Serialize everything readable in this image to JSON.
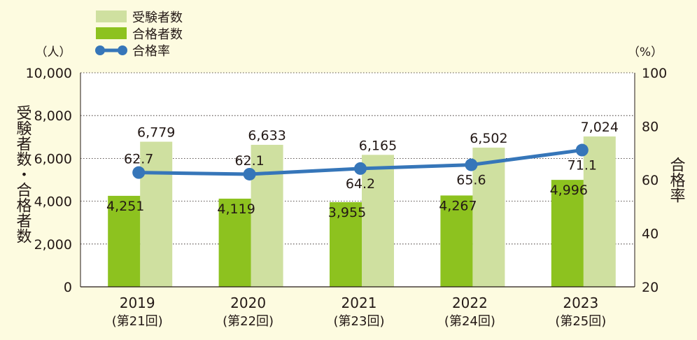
{
  "chart_data": {
    "type": "bar+line",
    "categories": [
      "2019\n(第21回)",
      "2020\n(第22回)",
      "2021\n(第23回)",
      "2022\n(第24回)",
      "2023\n(第25回)"
    ],
    "category_years": [
      "2019",
      "2020",
      "2021",
      "2022",
      "2023"
    ],
    "category_rounds": [
      "(第21回)",
      "(第22回)",
      "(第23回)",
      "(第24回)",
      "(第25回)"
    ],
    "series": [
      {
        "name": "受験者数",
        "type": "bar",
        "axis": "left",
        "color": "#cfe0a0",
        "values": [
          6779,
          6633,
          6165,
          6502,
          7024
        ],
        "labels": [
          "6,779",
          "6,633",
          "6,165",
          "6,502",
          "7,024"
        ]
      },
      {
        "name": "合格者数",
        "type": "bar",
        "axis": "left",
        "color": "#8dc21f",
        "values": [
          4251,
          4119,
          3955,
          4267,
          4996
        ],
        "labels": [
          "4,251",
          "4,119",
          "3,955",
          "4,267",
          "4,996"
        ]
      },
      {
        "name": "合格率",
        "type": "line",
        "axis": "right",
        "color": "#3676b9",
        "values": [
          62.7,
          62.1,
          64.2,
          65.6,
          71.1
        ],
        "labels": [
          "62.7",
          "62.1",
          "64.2",
          "65.6",
          "71.1"
        ]
      }
    ],
    "ylabel_left": "受験者数・合格者数",
    "ylabel_right": "合格率",
    "unit_left": "（人）",
    "unit_right": "（%）",
    "ylim_left": [
      0,
      10000
    ],
    "ylim_right": [
      20,
      100
    ],
    "yticks_left": [
      0,
      2000,
      4000,
      6000,
      8000,
      10000
    ],
    "ytick_labels_left": [
      "0",
      "2,000",
      "4,000",
      "6,000",
      "8,000",
      "10,000"
    ],
    "yticks_right": [
      20,
      40,
      60,
      80,
      100
    ],
    "ytick_labels_right": [
      "20",
      "40",
      "60",
      "80",
      "100"
    ],
    "legend_position": "top-left",
    "grid": "horizontal",
    "colors": {
      "background": "#fdfbe0",
      "plot_area": "#ffffff",
      "grid": "#231815"
    }
  }
}
